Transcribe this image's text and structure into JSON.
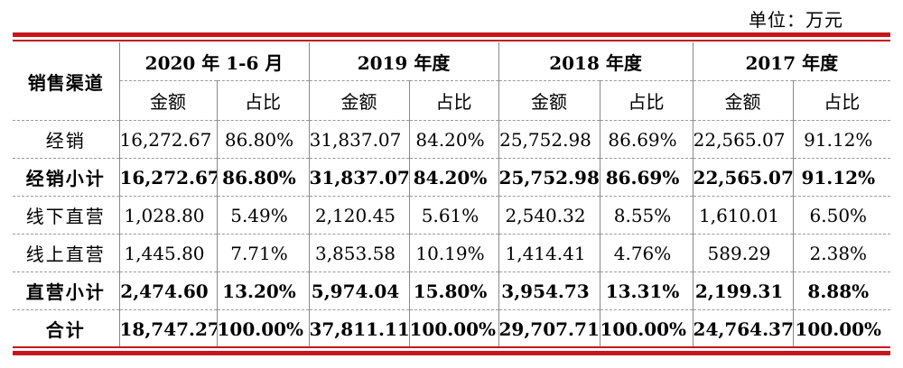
{
  "unit_label": "单位：万元",
  "table": {
    "channel_header": "销售渠道",
    "periods": [
      "2020 年 1-6 月",
      "2019 年度",
      "2018 年度",
      "2017 年度"
    ],
    "subheaders": [
      "金额",
      "占比"
    ],
    "rows": [
      {
        "label": "经销",
        "bold": false,
        "cells": [
          "16,272.67",
          "86.80%",
          "31,837.07",
          "84.20%",
          "25,752.98",
          "86.69%",
          "22,565.07",
          "91.12%"
        ]
      },
      {
        "label": "经销小计",
        "bold": true,
        "cells": [
          "16,272.67",
          "86.80%",
          "31,837.07",
          "84.20%",
          "25,752.98",
          "86.69%",
          "22,565.07",
          "91.12%"
        ]
      },
      {
        "label": "线下直营",
        "bold": false,
        "cells": [
          "1,028.80",
          "5.49%",
          "2,120.45",
          "5.61%",
          "2,540.32",
          "8.55%",
          "1,610.01",
          "6.50%"
        ]
      },
      {
        "label": "线上直营",
        "bold": false,
        "cells": [
          "1,445.80",
          "7.71%",
          "3,853.58",
          "10.19%",
          "1,414.41",
          "4.76%",
          "589.29",
          "2.38%"
        ]
      },
      {
        "label": "直营小计",
        "bold": true,
        "cells": [
          "2,474.60",
          "13.20%",
          "5,974.04",
          "15.80%",
          "3,954.73",
          "13.31%",
          "2,199.31",
          "8.88%"
        ]
      },
      {
        "label": "合计",
        "bold": true,
        "cells": [
          "18,747.27",
          "100.00%",
          "37,811.11",
          "100.00%",
          "29,707.71",
          "100.00%",
          "24,764.37",
          "100.00%"
        ]
      }
    ]
  }
}
